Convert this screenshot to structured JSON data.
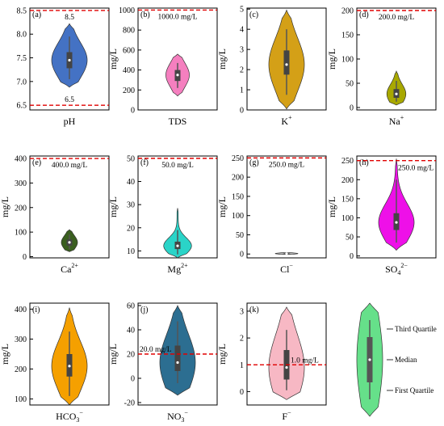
{
  "chart_data": [
    {
      "id": "a",
      "tag": "(a)",
      "type": "violin",
      "xlabel": "pH",
      "ylabel": "",
      "ylim": [
        6.4,
        8.55
      ],
      "yticks": [
        6.5,
        7.0,
        7.5,
        8.0,
        8.5
      ],
      "yfmt": 1,
      "color": "#4472c4",
      "violin": {
        "min": 6.88,
        "max": 8.22,
        "q1": 7.28,
        "median": 7.45,
        "q3": 7.62,
        "whisker_low": 7.05,
        "whisker_high": 7.95
      },
      "refs": [
        {
          "value": 8.5,
          "label": "8.5"
        },
        {
          "value": 6.5,
          "label": "6.5"
        }
      ]
    },
    {
      "id": "b",
      "tag": "(b)",
      "type": "violin",
      "xlabel": "TDS",
      "ylabel": "mg/L",
      "ylim": [
        0,
        1020
      ],
      "yticks": [
        0,
        200,
        400,
        600,
        800,
        1000
      ],
      "yfmt": 0,
      "color": "#f57fbf",
      "violin": {
        "min": 140,
        "max": 560,
        "q1": 290,
        "median": 350,
        "q3": 400,
        "whisker_low": 220,
        "whisker_high": 470
      },
      "refs": [
        {
          "value": 1000,
          "label": "1000.0 mg/L"
        }
      ]
    },
    {
      "id": "c",
      "tag": "(c)",
      "type": "violin",
      "xlabel": "K",
      "xsup": "+",
      "ylabel": "mg/L",
      "ylim": [
        0,
        5.05
      ],
      "yticks": [
        0,
        1,
        2,
        3,
        4,
        5
      ],
      "yfmt": 0,
      "color": "#d4a017",
      "violin": {
        "min": 0.05,
        "max": 4.95,
        "q1": 1.75,
        "median": 2.25,
        "q3": 2.95,
        "whisker_low": 0.75,
        "whisker_high": 4.0
      },
      "refs": []
    },
    {
      "id": "d",
      "tag": "(d)",
      "type": "violin",
      "xlabel": "Na",
      "xsup": "+",
      "ylabel": "mg/L",
      "ylim": [
        -5,
        205
      ],
      "yticks": [
        0,
        50,
        100,
        150,
        200
      ],
      "yfmt": 0,
      "color": "#a8a800",
      "violin": {
        "min": 5,
        "max": 75,
        "q1": 20,
        "median": 28,
        "q3": 38,
        "whisker_low": 12,
        "whisker_high": 55
      },
      "refs": [
        {
          "value": 200,
          "label": "200.0 mg/L"
        }
      ]
    },
    {
      "id": "e",
      "tag": "(e)",
      "type": "violin",
      "xlabel": "Ca",
      "xsup": "2+",
      "ylabel": "mg/L",
      "ylim": [
        -5,
        410
      ],
      "yticks": [
        0,
        100,
        200,
        300,
        400
      ],
      "yfmt": 0,
      "color": "#3a5f1f",
      "violin": {
        "min": 20,
        "max": 110,
        "q1": 45,
        "median": 58,
        "q3": 70,
        "whisker_low": 30,
        "whisker_high": 90
      },
      "refs": [
        {
          "value": 400,
          "label": "400.0 mg/L"
        }
      ]
    },
    {
      "id": "f",
      "tag": "(f)",
      "type": "violin",
      "xlabel": "Mg",
      "xsup": "2+",
      "ylabel": "mg/L",
      "ylim": [
        7,
        51
      ],
      "yticks": [
        10,
        20,
        30,
        40,
        50
      ],
      "yfmt": 0,
      "color": "#2ad4c8",
      "violin": {
        "min": 7,
        "max": 28.5,
        "q1": 10.8,
        "median": 12.2,
        "q3": 14.0,
        "whisker_low": 8.5,
        "whisker_high": 19
      },
      "refs": [
        {
          "value": 50,
          "label": "50.0 mg/L"
        }
      ]
    },
    {
      "id": "g",
      "tag": "(g)",
      "type": "violin",
      "xlabel": "Cl",
      "xsup": "−",
      "ylabel": "mg/L",
      "ylim": [
        -10,
        255
      ],
      "yticks": [
        0,
        50,
        100,
        150,
        200,
        250
      ],
      "yfmt": 0,
      "color": "#bbbbbb",
      "violin": {
        "min": -1,
        "max": 4,
        "q1": 0.5,
        "median": 1.2,
        "q3": 2,
        "whisker_low": 0,
        "whisker_high": 3
      },
      "refs": [
        {
          "value": 250,
          "label": "250.0 mg/L"
        }
      ]
    },
    {
      "id": "h",
      "tag": "(h)",
      "type": "violin",
      "xlabel": "SO",
      "xsub": "4",
      "xsup": "2−",
      "ylabel": "mg/L",
      "ylim": [
        -5,
        262
      ],
      "yticks": [
        0,
        50,
        100,
        150,
        200,
        250
      ],
      "yfmt": 0,
      "color": "#ee10e8",
      "violin": {
        "min": 15,
        "max": 255,
        "q1": 68,
        "median": 88,
        "q3": 112,
        "whisker_low": 35,
        "whisker_high": 200
      },
      "refs": [
        {
          "value": 250,
          "label": "250.0 mg/L"
        }
      ]
    },
    {
      "id": "i",
      "tag": "(i)",
      "type": "violin",
      "xlabel": "HCO",
      "xsub": "3",
      "xsup": "−",
      "ylabel": "mg/L",
      "ylim": [
        80,
        420
      ],
      "yticks": [
        100,
        200,
        300,
        400
      ],
      "yfmt": 0,
      "color": "#f5a000",
      "violin": {
        "min": 80,
        "max": 405,
        "q1": 175,
        "median": 210,
        "q3": 250,
        "whisker_low": 110,
        "whisker_high": 325
      },
      "refs": []
    },
    {
      "id": "j",
      "tag": "(j)",
      "type": "violin",
      "xlabel": "NO",
      "xsub": "3",
      "xsup": "−",
      "ylabel": "mg/L",
      "ylim": [
        -22,
        62
      ],
      "yticks": [
        -20,
        0,
        20,
        40,
        60
      ],
      "yfmt": 0,
      "color": "#2c6e91",
      "violin": {
        "min": -14,
        "max": 60,
        "q1": 6,
        "median": 13,
        "q3": 27,
        "whisker_low": -4,
        "whisker_high": 47
      },
      "refs": [
        {
          "value": 20,
          "label": "20.0 mg/L"
        }
      ]
    },
    {
      "id": "k",
      "tag": "(k)",
      "type": "violin",
      "xlabel": "F",
      "xsup": "−",
      "ylabel": "mg/L",
      "ylim": [
        -0.5,
        3.3
      ],
      "yticks": [
        0,
        1,
        2,
        3
      ],
      "yfmt": 0,
      "color": "#f7b8c4",
      "violin": {
        "min": -0.3,
        "max": 3.15,
        "q1": 0.45,
        "median": 0.9,
        "q3": 1.55,
        "whisker_low": 0.05,
        "whisker_high": 2.3
      },
      "refs": [
        {
          "value": 1.0,
          "label": "1.0 mg/L"
        }
      ]
    }
  ],
  "legend": {
    "color": "#66e08a",
    "items": [
      "Third Quartile",
      "Median",
      "First Quartile"
    ]
  }
}
